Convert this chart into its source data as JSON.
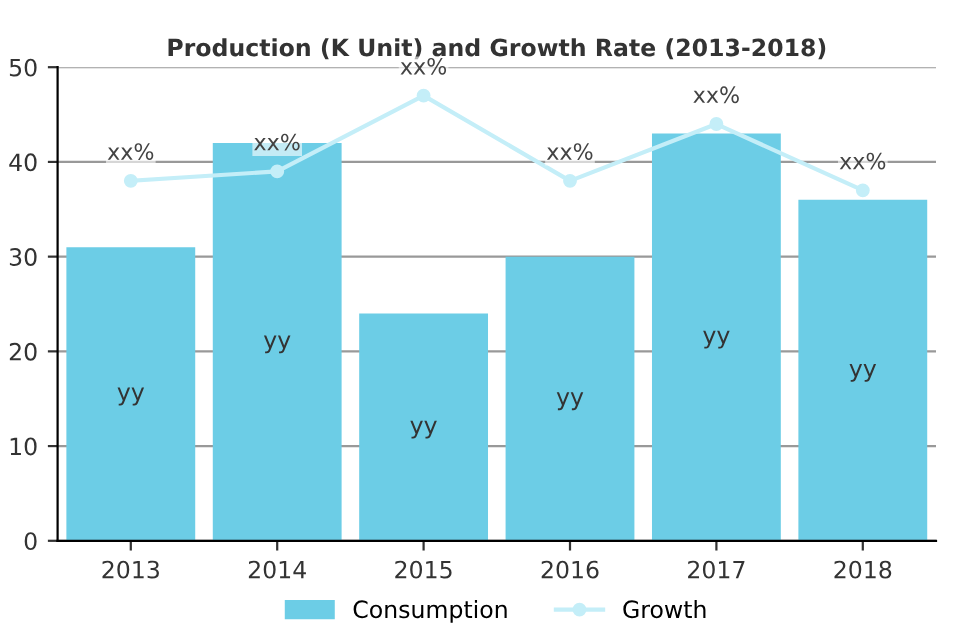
{
  "chart_data": {
    "type": "bar",
    "title": "Production (K Unit) and Growth Rate (2013-2018)",
    "categories": [
      "2013",
      "2014",
      "2015",
      "2016",
      "2017",
      "2018"
    ],
    "series": [
      {
        "name": "Consumption",
        "color": "#6ccde6",
        "values": [
          31,
          42,
          24,
          30,
          43,
          36
        ],
        "value_labels": [
          "yy",
          "yy",
          "yy",
          "yy",
          "yy",
          "yy"
        ]
      },
      {
        "name": "Growth",
        "type": "line",
        "color": "#c4eef8",
        "values": [
          38,
          39,
          47,
          38,
          44,
          37
        ],
        "value_labels": [
          "xx%",
          "xx%",
          "xx%",
          "xx%",
          "xx%",
          "xx%"
        ],
        "marker": "circle"
      }
    ],
    "ylim": [
      0,
      50
    ],
    "yticks": [
      0,
      10,
      20,
      30,
      40,
      50
    ],
    "grid": "y",
    "legend": "bottom"
  }
}
